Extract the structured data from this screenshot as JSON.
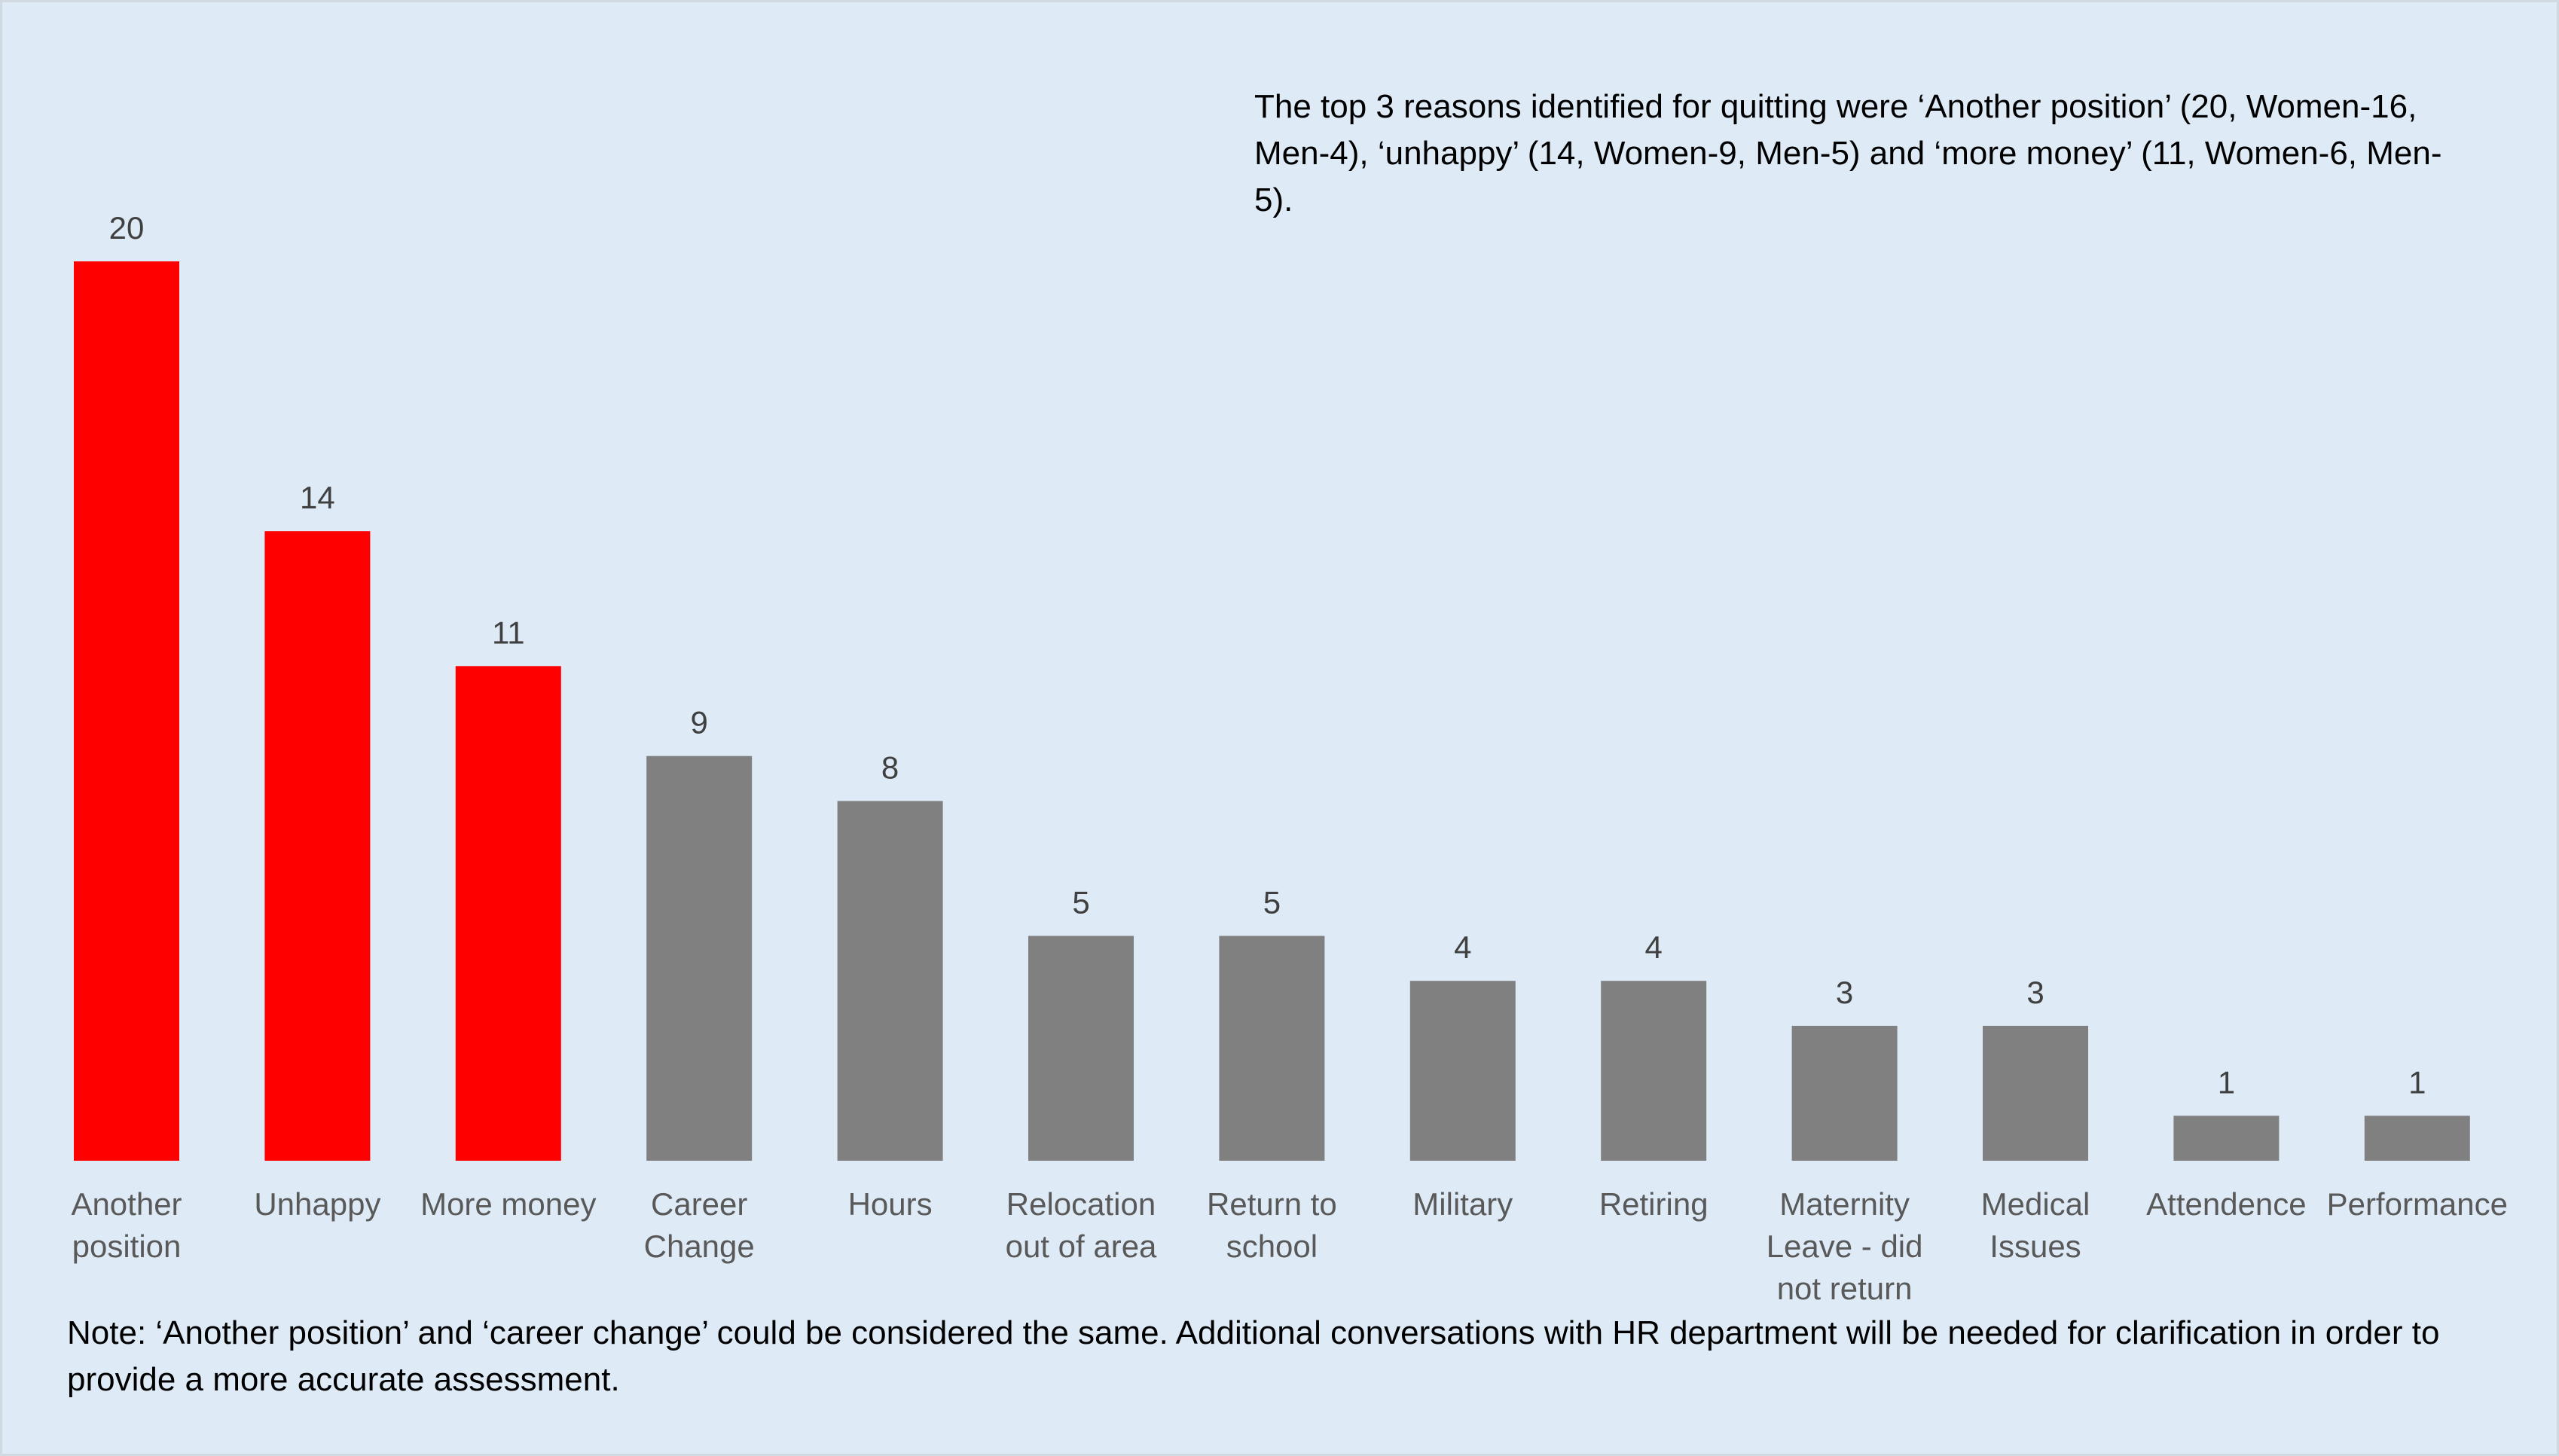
{
  "chart_data": {
    "type": "bar",
    "categories": [
      "Another position",
      "Unhappy",
      "More money",
      "Career Change",
      "Hours",
      "Relocation out of area",
      "Return to school",
      "Military",
      "Retiring",
      "Maternity Leave - did not return",
      "Medical Issues",
      "Attendence",
      "Performance"
    ],
    "category_lines": [
      [
        "Another",
        "position"
      ],
      [
        "Unhappy"
      ],
      [
        "More money"
      ],
      [
        "Career",
        "Change"
      ],
      [
        "Hours"
      ],
      [
        "Relocation",
        "out of area"
      ],
      [
        "Return to",
        "school"
      ],
      [
        "Military"
      ],
      [
        "Retiring"
      ],
      [
        "Maternity",
        "Leave - did",
        "not return"
      ],
      [
        "Medical",
        "Issues"
      ],
      [
        "Attendence"
      ],
      [
        "Performance"
      ]
    ],
    "values": [
      20,
      14,
      11,
      9,
      8,
      5,
      5,
      4,
      4,
      3,
      3,
      1,
      1
    ],
    "bar_colors": [
      "#ff0000",
      "#ff0000",
      "#ff0000",
      "#808080",
      "#808080",
      "#808080",
      "#808080",
      "#808080",
      "#808080",
      "#808080",
      "#808080",
      "#808080",
      "#808080"
    ],
    "highlight_color": "#ff0000",
    "base_color": "#808080",
    "data_labels": true,
    "ylim": [
      0,
      20
    ],
    "grid": false,
    "legend": "none"
  },
  "annotation": "The top 3 reasons identified for quitting were ‘Another position’ (20, Women-16, Men-4), ‘unhappy’ (14, Women-9, Men-5) and ‘more money’ (11, Women-6, Men-5).",
  "note": "Note: ‘Another position’ and ‘career change’ could be considered the same. Additional conversations with HR department will be needed for clarification in order to provide a more accurate assessment.",
  "colors": {
    "background": "#deebf7"
  }
}
